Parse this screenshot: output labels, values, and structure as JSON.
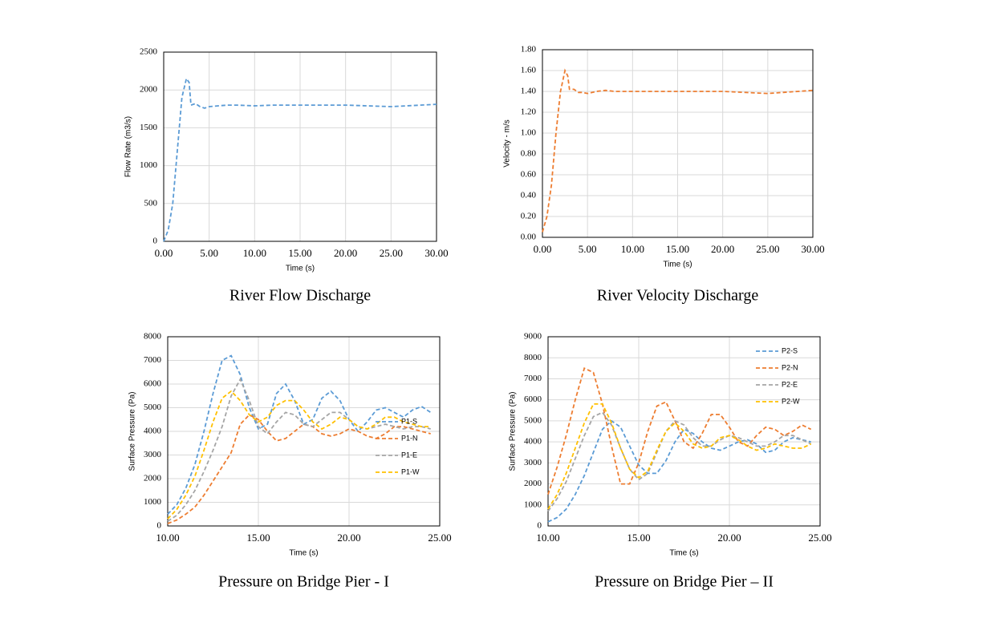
{
  "chart_data": [
    {
      "type": "line",
      "title": "River Flow Discharge",
      "x_label": "Time (s)",
      "y_label": "Flow Rate (m3/s)",
      "x": [
        0,
        0.5,
        1,
        1.5,
        2,
        2.5,
        2.8,
        3,
        3.5,
        4,
        4.5,
        5,
        6,
        7,
        8,
        10,
        12,
        15,
        20,
        25,
        30
      ],
      "values": [
        0,
        150,
        500,
        1200,
        1900,
        2150,
        2100,
        1800,
        1820,
        1780,
        1760,
        1780,
        1790,
        1800,
        1800,
        1790,
        1800,
        1800,
        1800,
        1780,
        1810
      ],
      "color": "#5b9bd5",
      "line_style": "dashed",
      "grid": true,
      "xlim": [
        0,
        30
      ],
      "xticks": [
        {
          "value": 0,
          "label": "0.00"
        },
        {
          "value": 5,
          "label": "5.00"
        },
        {
          "value": 10,
          "label": "10.00"
        },
        {
          "value": 15,
          "label": "15.00"
        },
        {
          "value": 20,
          "label": "20.00"
        },
        {
          "value": 25,
          "label": "25.00"
        },
        {
          "value": 30,
          "label": "30.00"
        }
      ],
      "ylim": [
        0,
        2500
      ],
      "yticks": [
        0,
        500,
        1000,
        1500,
        2000,
        2500
      ]
    },
    {
      "type": "line",
      "title": "River Velocity Discharge",
      "x_label": "Time (s)",
      "y_label": "Velocity - m/s",
      "x": [
        0,
        0.5,
        1,
        1.5,
        2,
        2.5,
        2.8,
        3,
        3.5,
        4,
        4.5,
        5,
        6,
        7,
        8,
        10,
        12,
        15,
        20,
        25,
        30
      ],
      "values": [
        0.05,
        0.2,
        0.5,
        1.0,
        1.4,
        1.6,
        1.55,
        1.42,
        1.42,
        1.39,
        1.39,
        1.38,
        1.4,
        1.41,
        1.4,
        1.4,
        1.4,
        1.4,
        1.4,
        1.38,
        1.41
      ],
      "color": "#ed7d31",
      "line_style": "dashed",
      "grid": true,
      "xlim": [
        0,
        30
      ],
      "xticks": [
        {
          "value": 0,
          "label": "0.00"
        },
        {
          "value": 5,
          "label": "5.00"
        },
        {
          "value": 10,
          "label": "10.00"
        },
        {
          "value": 15,
          "label": "15.00"
        },
        {
          "value": 20,
          "label": "20.00"
        },
        {
          "value": 25,
          "label": "25.00"
        },
        {
          "value": 30,
          "label": "30.00"
        }
      ],
      "ylim": [
        0,
        1.8
      ],
      "yticks": [
        {
          "value": 0,
          "label": "0.00"
        },
        {
          "value": 0.2,
          "label": "0.20"
        },
        {
          "value": 0.4,
          "label": "0.40"
        },
        {
          "value": 0.6,
          "label": "0.60"
        },
        {
          "value": 0.8,
          "label": "0.80"
        },
        {
          "value": 1,
          "label": "1.00"
        },
        {
          "value": 1.2,
          "label": "1.20"
        },
        {
          "value": 1.4,
          "label": "1.40"
        },
        {
          "value": 1.6,
          "label": "1.60"
        },
        {
          "value": 1.8,
          "label": "1.80"
        }
      ]
    },
    {
      "type": "line",
      "title": "Pressure on Bridge Pier - I",
      "x_label": "Time (s)",
      "y_label": "Surface Pressure (Pa)",
      "x": [
        10,
        10.5,
        11,
        11.5,
        12,
        12.5,
        13,
        13.5,
        14,
        14.5,
        15,
        15.5,
        16,
        16.5,
        17,
        17.5,
        18,
        18.5,
        19,
        19.5,
        20,
        20.5,
        21,
        21.5,
        22,
        22.5,
        23,
        23.5,
        24,
        24.5
      ],
      "series": [
        {
          "name": "P1-S",
          "color": "#5b9bd5",
          "values": [
            500,
            900,
            1600,
            2600,
            4000,
            5600,
            7000,
            7200,
            6400,
            5000,
            4100,
            4300,
            5600,
            6000,
            5300,
            4300,
            4500,
            5400,
            5700,
            5300,
            4500,
            4000,
            4400,
            4900,
            5000,
            4800,
            4600,
            4900,
            5050,
            4800
          ]
        },
        {
          "name": "P1-N",
          "color": "#ed7d31",
          "values": [
            100,
            250,
            500,
            800,
            1300,
            1900,
            2500,
            3100,
            4300,
            4700,
            4500,
            4000,
            3600,
            3700,
            4000,
            4300,
            4200,
            3900,
            3800,
            3900,
            4100,
            4000,
            3800,
            3700,
            3900,
            4200,
            4200,
            4100,
            4000,
            3900
          ]
        },
        {
          "name": "P1-E",
          "color": "#a5a5a5",
          "values": [
            200,
            450,
            900,
            1500,
            2300,
            3200,
            4200,
            5500,
            6200,
            5300,
            4200,
            3900,
            4400,
            4800,
            4700,
            4300,
            4200,
            4500,
            4800,
            4800,
            4500,
            4200,
            4100,
            4200,
            4300,
            4200,
            4100,
            4200,
            4200,
            4100
          ]
        },
        {
          "name": "P1-W",
          "color": "#ffc000",
          "values": [
            300,
            700,
            1300,
            2100,
            3200,
            4400,
            5400,
            5700,
            5300,
            4700,
            4400,
            4600,
            5100,
            5300,
            5300,
            4900,
            4400,
            4100,
            4300,
            4600,
            4500,
            4200,
            4100,
            4300,
            4600,
            4600,
            4400,
            4300,
            4200,
            4200
          ]
        }
      ],
      "line_style": "dashed",
      "grid": true,
      "legend": "lower right",
      "xlim": [
        10,
        25
      ],
      "xticks": [
        {
          "value": 10,
          "label": "10.00"
        },
        {
          "value": 15,
          "label": "15.00"
        },
        {
          "value": 20,
          "label": "20.00"
        },
        {
          "value": 25,
          "label": "25.00"
        }
      ],
      "ylim": [
        0,
        8000
      ],
      "yticks": [
        0,
        1000,
        2000,
        3000,
        4000,
        5000,
        6000,
        7000,
        8000
      ]
    },
    {
      "type": "line",
      "title": "Pressure on Bridge Pier – II",
      "x_label": "Time (s)",
      "y_label": "Surface Pressure (Pa)",
      "x": [
        10,
        10.5,
        11,
        11.5,
        12,
        12.5,
        13,
        13.5,
        14,
        14.5,
        15,
        15.5,
        16,
        16.5,
        17,
        17.5,
        18,
        18.5,
        19,
        19.5,
        20,
        20.5,
        21,
        21.5,
        22,
        22.5,
        23,
        23.5,
        24,
        24.5
      ],
      "series": [
        {
          "name": "P2-S",
          "color": "#5b9bd5",
          "values": [
            200,
            400,
            800,
            1500,
            2400,
            3500,
            4600,
            5000,
            4700,
            3800,
            2900,
            2500,
            2500,
            3100,
            4000,
            4600,
            4400,
            4000,
            3700,
            3600,
            3800,
            4000,
            4100,
            3900,
            3500,
            3600,
            4000,
            4200,
            4100,
            4000
          ]
        },
        {
          "name": "P2-N",
          "color": "#ed7d31",
          "values": [
            1500,
            2800,
            4300,
            6000,
            7500,
            7300,
            5800,
            3800,
            2000,
            2000,
            3000,
            4500,
            5700,
            5900,
            5000,
            4000,
            3700,
            4400,
            5300,
            5300,
            4700,
            4000,
            3800,
            4300,
            4700,
            4600,
            4300,
            4500,
            4800,
            4600
          ]
        },
        {
          "name": "P2-E",
          "color": "#a5a5a5",
          "values": [
            700,
            1300,
            2100,
            3200,
            4300,
            5200,
            5400,
            4800,
            3700,
            2700,
            2200,
            2500,
            3500,
            4500,
            5000,
            4800,
            4200,
            3800,
            3800,
            4100,
            4300,
            4200,
            4000,
            3800,
            3800,
            4000,
            4300,
            4300,
            4100,
            3900
          ]
        },
        {
          "name": "P2-W",
          "color": "#ffc000",
          "values": [
            800,
            1500,
            2500,
            3700,
            4900,
            5800,
            5800,
            4900,
            3700,
            2700,
            2300,
            2600,
            3600,
            4500,
            4900,
            4500,
            3900,
            3700,
            3800,
            4200,
            4300,
            4100,
            3800,
            3600,
            3700,
            3900,
            3800,
            3700,
            3700,
            3900
          ]
        }
      ],
      "line_style": "dashed",
      "grid": true,
      "legend": "upper right",
      "xlim": [
        10,
        25
      ],
      "xticks": [
        {
          "value": 10,
          "label": "10.00"
        },
        {
          "value": 15,
          "label": "15.00"
        },
        {
          "value": 20,
          "label": "20.00"
        },
        {
          "value": 25,
          "label": "25.00"
        }
      ],
      "ylim": [
        0,
        9000
      ],
      "yticks": [
        0,
        1000,
        2000,
        3000,
        4000,
        5000,
        6000,
        7000,
        8000,
        9000
      ]
    }
  ]
}
